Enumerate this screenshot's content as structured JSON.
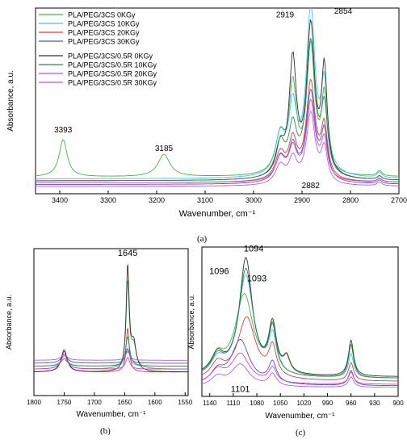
{
  "captions": {
    "a": "(a)",
    "b": "(b)",
    "c": "(c)"
  },
  "chart_data": [
    {
      "type": "line",
      "panel": "a",
      "xlabel": "Wavenumber, cm⁻¹",
      "ylabel": "Absorbance, a.u.",
      "xlim": [
        3450,
        2700
      ],
      "x_reversed": true,
      "y_ticks_shown": false,
      "xticks": [
        3400,
        3300,
        3200,
        3100,
        3000,
        2900,
        2800,
        2700
      ],
      "xtick_labels": [
        "3400",
        "3300",
        "3200",
        "3100",
        "3000",
        "2900",
        "2800",
        "2700"
      ],
      "legend_position": "top-left",
      "legend": [
        {
          "name": "PLA/PEG/3CS 0KGy",
          "color": "#4caf50"
        },
        {
          "name": "PLA/PEG/3CS 10KGy",
          "color": "#40c8e0"
        },
        {
          "name": "PLA/PEG/3CS 20KGy",
          "color": "#d04040"
        },
        {
          "name": "PLA/PEG/3CS 30KGy",
          "color": "#5050d0"
        },
        {
          "name": "PLA/PEG/3CS/0.5R 0KGy",
          "color": "#333333"
        },
        {
          "name": "PLA/PEG/3CS/0.5R 10KGy",
          "color": "#2e8b57"
        },
        {
          "name": "PLA/PEG/3CS/0.5R 20KGy",
          "color": "#e040c0"
        },
        {
          "name": "PLA/PEG/3CS/0.5R 30KGy",
          "color": "#b060e0"
        }
      ],
      "series": [
        {
          "name": "PLA/PEG/3CS 0KGy",
          "color": "#4caf50",
          "base": 0.09,
          "peaks": [
            [
              3393,
              0.2,
              10
            ],
            [
              3185,
              0.12,
              15
            ],
            [
              2945,
              0.2,
              12
            ],
            [
              2919,
              0.46,
              9
            ],
            [
              2882,
              0.68,
              10
            ],
            [
              2854,
              0.4,
              7
            ],
            [
              2740,
              0.03,
              6
            ]
          ]
        },
        {
          "name": "PLA/PEG/3CS 10KGy",
          "color": "#40c8e0",
          "base": 0.08,
          "peaks": [
            [
              2945,
              0.2,
              12
            ],
            [
              2919,
              0.35,
              10
            ],
            [
              2882,
              0.88,
              11
            ],
            [
              2854,
              0.45,
              8
            ],
            [
              2740,
              0.03,
              6
            ]
          ]
        },
        {
          "name": "PLA/PEG/3CS 20KGy",
          "color": "#d04040",
          "base": 0.06,
          "peaks": [
            [
              2945,
              0.14,
              12
            ],
            [
              2919,
              0.2,
              10
            ],
            [
              2882,
              0.52,
              11
            ],
            [
              2854,
              0.27,
              8
            ],
            [
              2740,
              0.02,
              6
            ]
          ]
        },
        {
          "name": "PLA/PEG/3CS 30KGy",
          "color": "#5050d0",
          "base": 0.05,
          "peaks": [
            [
              2945,
              0.13,
              12
            ],
            [
              2919,
              0.18,
              10
            ],
            [
              2882,
              0.48,
              11
            ],
            [
              2854,
              0.25,
              8
            ],
            [
              2740,
              0.02,
              6
            ]
          ]
        },
        {
          "name": "PLA/PEG/3CS/0.5R 0KGy",
          "color": "#333333",
          "base": 0.07,
          "peaks": [
            [
              2945,
              0.15,
              10
            ],
            [
              2919,
              0.62,
              9
            ],
            [
              2882,
              0.8,
              10
            ],
            [
              2854,
              0.56,
              7
            ],
            [
              2740,
              0.02,
              6
            ]
          ]
        },
        {
          "name": "PLA/PEG/3CS/0.5R 10KGy",
          "color": "#2e8b57",
          "base": 0.07,
          "peaks": [
            [
              2945,
              0.18,
              12
            ],
            [
              2919,
              0.25,
              10
            ],
            [
              2882,
              0.72,
              11
            ],
            [
              2854,
              0.35,
              8
            ],
            [
              2740,
              0.02,
              6
            ]
          ]
        },
        {
          "name": "PLA/PEG/3CS/0.5R 20KGy",
          "color": "#e040c0",
          "base": 0.06,
          "peaks": [
            [
              2945,
              0.12,
              12
            ],
            [
              2919,
              0.16,
              10
            ],
            [
              2882,
              0.42,
              11
            ],
            [
              2854,
              0.2,
              8
            ],
            [
              2740,
              0.02,
              6
            ]
          ]
        },
        {
          "name": "PLA/PEG/3CS/0.5R 30KGy",
          "color": "#b060e0",
          "base": 0.04,
          "peaks": [
            [
              2945,
              0.1,
              12
            ],
            [
              2919,
              0.13,
              10
            ],
            [
              2882,
              0.38,
              11
            ],
            [
              2854,
              0.18,
              8
            ],
            [
              2740,
              0.02,
              6
            ]
          ]
        }
      ],
      "annotations": [
        {
          "text": "3393",
          "x": 3393,
          "y": 0.33
        },
        {
          "text": "3185",
          "x": 3185,
          "y": 0.23
        },
        {
          "text": "2919",
          "x": 2935,
          "y": 0.95
        },
        {
          "text": "2854",
          "x": 2815,
          "y": 0.97
        },
        {
          "text": "2882",
          "x": 2882,
          "y": 0.03
        }
      ]
    },
    {
      "type": "line",
      "panel": "b",
      "xlabel": "Wavenumber, cm⁻¹",
      "ylabel": "Absorbance, a.u.",
      "xlim": [
        1800,
        1545
      ],
      "x_reversed": true,
      "y_ticks_shown": false,
      "xticks": [
        1800,
        1750,
        1700,
        1650,
        1600,
        1550
      ],
      "xtick_labels": [
        "1800",
        "1750",
        "1700",
        "1650",
        "1600",
        "1550"
      ],
      "series": [
        {
          "color": "#4caf50",
          "base": 0.18,
          "peaks": [
            [
              1750,
              0.1,
              6
            ],
            [
              1645,
              0.58,
              3
            ],
            [
              1635,
              0.15,
              5
            ]
          ]
        },
        {
          "color": "#40c8e0",
          "base": 0.2,
          "peaks": [
            [
              1750,
              0.07,
              6
            ],
            [
              1645,
              0.12,
              4
            ]
          ]
        },
        {
          "color": "#d04040",
          "base": 0.16,
          "peaks": [
            [
              1750,
              0.14,
              6
            ],
            [
              1645,
              0.3,
              3
            ]
          ]
        },
        {
          "color": "#5050d0",
          "base": 0.22,
          "peaks": [
            [
              1750,
              0.06,
              6
            ],
            [
              1645,
              0.1,
              4
            ]
          ]
        },
        {
          "color": "#333333",
          "base": 0.16,
          "peaks": [
            [
              1750,
              0.15,
              6
            ],
            [
              1645,
              0.7,
              3
            ],
            [
              1635,
              0.18,
              5
            ]
          ]
        },
        {
          "color": "#2e8b57",
          "base": 0.2,
          "peaks": [
            [
              1750,
              0.05,
              6
            ],
            [
              1645,
              0.2,
              4
            ]
          ]
        },
        {
          "color": "#e040c0",
          "base": 0.18,
          "peaks": [
            [
              1750,
              0.1,
              6
            ],
            [
              1645,
              0.08,
              4
            ]
          ]
        },
        {
          "color": "#b060e0",
          "base": 0.24,
          "peaks": [
            [
              1750,
              0.04,
              6
            ],
            [
              1645,
              0.06,
              4
            ]
          ]
        }
      ],
      "annotations": [
        {
          "text": "1645",
          "x": 1645,
          "y": 0.95
        }
      ]
    },
    {
      "type": "line",
      "panel": "c",
      "xlabel": "Wavenumber, cm⁻¹",
      "ylabel": "Absorbance, a.u.",
      "xlim": [
        1150,
        900
      ],
      "x_reversed": true,
      "y_ticks_shown": false,
      "xticks": [
        1140,
        1110,
        1080,
        1050,
        1020,
        990,
        960,
        930,
        900
      ],
      "xtick_labels": [
        "1140",
        "1110",
        "1080",
        "1050",
        "1020",
        "990",
        "960",
        "930",
        "900"
      ],
      "series": [
        {
          "color": "#4caf50",
          "base": 0.12,
          "peaks": [
            [
              1130,
              0.12,
              10
            ],
            [
              1096,
              0.55,
              14
            ],
            [
              1060,
              0.3,
              6
            ],
            [
              1042,
              0.1,
              5
            ],
            [
              960,
              0.22,
              4
            ]
          ]
        },
        {
          "color": "#40c8e0",
          "base": 0.12,
          "peaks": [
            [
              1130,
              0.1,
              10
            ],
            [
              1094,
              0.68,
              12
            ],
            [
              1060,
              0.25,
              6
            ],
            [
              960,
              0.16,
              4
            ]
          ]
        },
        {
          "color": "#d04040",
          "base": 0.1,
          "peaks": [
            [
              1130,
              0.1,
              10
            ],
            [
              1093,
              0.42,
              14
            ],
            [
              1060,
              0.2,
              6
            ],
            [
              960,
              0.12,
              4
            ]
          ]
        },
        {
          "color": "#5050d0",
          "base": 0.07,
          "peaks": [
            [
              1130,
              0.08,
              10
            ],
            [
              1101,
              0.3,
              14
            ],
            [
              1060,
              0.14,
              6
            ],
            [
              960,
              0.1,
              4
            ]
          ]
        },
        {
          "color": "#333333",
          "base": 0.13,
          "peaks": [
            [
              1130,
              0.13,
              10
            ],
            [
              1094,
              0.78,
              10
            ],
            [
              1060,
              0.32,
              6
            ],
            [
              1042,
              0.1,
              5
            ],
            [
              960,
              0.24,
              4
            ]
          ]
        },
        {
          "color": "#2e8b57",
          "base": 0.12,
          "peaks": [
            [
              1130,
              0.12,
              10
            ],
            [
              1094,
              0.72,
              11
            ],
            [
              1060,
              0.3,
              6
            ],
            [
              960,
              0.22,
              4
            ]
          ]
        },
        {
          "color": "#e040c0",
          "base": 0.08,
          "peaks": [
            [
              1130,
              0.08,
              10
            ],
            [
              1101,
              0.2,
              14
            ],
            [
              1060,
              0.1,
              6
            ],
            [
              960,
              0.08,
              4
            ]
          ]
        },
        {
          "color": "#b060e0",
          "base": 0.06,
          "peaks": [
            [
              1130,
              0.06,
              10
            ],
            [
              1101,
              0.15,
              14
            ],
            [
              1060,
              0.08,
              6
            ],
            [
              960,
              0.07,
              4
            ]
          ]
        }
      ],
      "annotations": [
        {
          "text": "1094",
          "x": 1084,
          "y": 0.97
        },
        {
          "text": "1096",
          "x": 1128,
          "y": 0.82
        },
        {
          "text": "1093",
          "x": 1080,
          "y": 0.77
        },
        {
          "text": "1101",
          "x": 1101,
          "y": 0.03
        }
      ]
    }
  ]
}
